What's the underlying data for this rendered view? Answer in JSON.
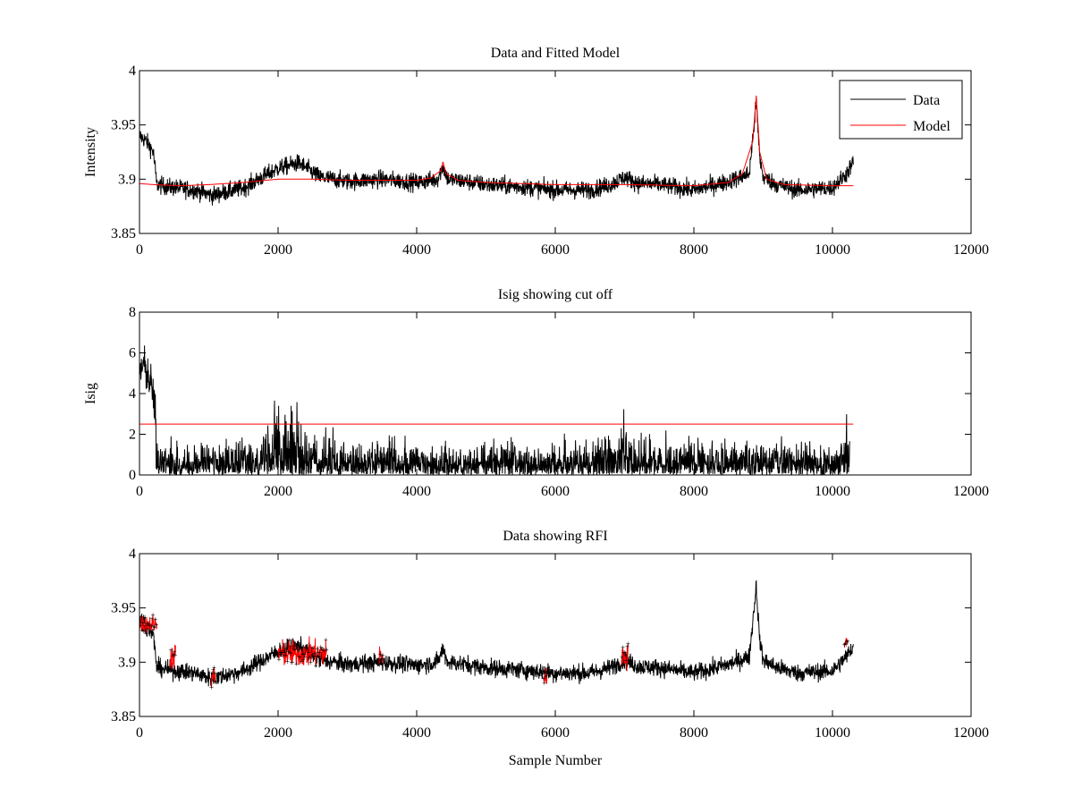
{
  "figure": {
    "colors": {
      "data": "#000000",
      "model": "#ff0000",
      "cutoff": "#ff0000",
      "rfi": "#ff0000"
    }
  },
  "chart_data": [
    {
      "type": "line",
      "title": "Data and Fitted Model",
      "xlabel": "",
      "ylabel": "Intensity",
      "xlim": [
        0,
        12000
      ],
      "ylim": [
        3.85,
        4
      ],
      "xticks": [
        "0",
        "2000",
        "4000",
        "6000",
        "8000",
        "10000",
        "12000"
      ],
      "yticks": [
        "3.85",
        "3.9",
        "3.95",
        "4"
      ],
      "grid": false,
      "legend": {
        "placement": "top-right",
        "entries": [
          "Data",
          "Model"
        ]
      },
      "series": [
        {
          "name": "Data",
          "color": "#000000",
          "noise": 0.008,
          "x": [
            0,
            100,
            200,
            250,
            400,
            800,
            1050,
            1500,
            2000,
            2300,
            2600,
            3000,
            3500,
            4000,
            4300,
            4380,
            4450,
            4700,
            5000,
            5500,
            6000,
            6500,
            6800,
            7000,
            7200,
            7500,
            8000,
            8500,
            8800,
            8900,
            8950,
            9000,
            9200,
            9500,
            10000,
            10200,
            10300
          ],
          "y": [
            3.94,
            3.935,
            3.925,
            3.895,
            3.893,
            3.89,
            3.885,
            3.892,
            3.91,
            3.915,
            3.902,
            3.898,
            3.9,
            3.897,
            3.9,
            3.912,
            3.9,
            3.898,
            3.895,
            3.893,
            3.89,
            3.89,
            3.895,
            3.902,
            3.896,
            3.895,
            3.89,
            3.898,
            3.905,
            3.97,
            3.92,
            3.902,
            3.895,
            3.89,
            3.892,
            3.905,
            3.915
          ]
        },
        {
          "name": "Model",
          "color": "#ff0000",
          "noise": 0,
          "x": [
            0,
            200,
            600,
            1000,
            1500,
            2000,
            2500,
            3000,
            3500,
            4000,
            4200,
            4350,
            4380,
            4420,
            4600,
            5000,
            6000,
            7000,
            8000,
            8500,
            8700,
            8850,
            8900,
            8950,
            9050,
            9300,
            10000,
            10300
          ],
          "y": [
            3.896,
            3.895,
            3.894,
            3.895,
            3.897,
            3.9,
            3.9,
            3.899,
            3.899,
            3.899,
            3.901,
            3.908,
            3.916,
            3.905,
            3.899,
            3.897,
            3.895,
            3.895,
            3.894,
            3.897,
            3.905,
            3.935,
            3.977,
            3.925,
            3.9,
            3.895,
            3.894,
            3.894
          ]
        }
      ]
    },
    {
      "type": "line",
      "title": "Isig showing cut off",
      "xlabel": "",
      "ylabel": "Isig",
      "xlim": [
        0,
        12000
      ],
      "ylim": [
        0,
        8
      ],
      "xticks": [
        "0",
        "2000",
        "4000",
        "6000",
        "8000",
        "10000",
        "12000"
      ],
      "yticks": [
        "0",
        "2",
        "4",
        "6",
        "8"
      ],
      "grid": false,
      "cutoff": 2.5,
      "series": [
        {
          "name": "",
          "color": "#000000",
          "x": [
            0,
            50,
            100,
            150,
            200,
            230,
            260,
            1000,
            1900,
            2000,
            2250,
            2400,
            3000,
            4000,
            5000,
            6000,
            6900,
            7000,
            7100,
            8000,
            9000,
            10000,
            10150,
            10200,
            10250
          ],
          "y": [
            5.0,
            5.4,
            5.1,
            4.6,
            4.0,
            2.8,
            0.8,
            0.8,
            1.1,
            1.6,
            1.7,
            1.0,
            0.8,
            0.8,
            0.8,
            0.8,
            0.9,
            1.6,
            1.0,
            0.8,
            0.8,
            0.8,
            1.0,
            1.6,
            2.0
          ]
        }
      ]
    },
    {
      "type": "line",
      "title": "Data showing RFI",
      "xlabel": "Sample Number",
      "ylabel": "",
      "xlim": [
        0,
        12000
      ],
      "ylim": [
        3.85,
        4
      ],
      "xticks": [
        "0",
        "2000",
        "4000",
        "6000",
        "8000",
        "10000",
        "12000"
      ],
      "yticks": [
        "3.85",
        "3.9",
        "3.95",
        "4"
      ],
      "grid": false,
      "series": [
        {
          "name": "",
          "color": "#000000",
          "noise": 0.008,
          "x": [
            0,
            100,
            200,
            250,
            400,
            800,
            1050,
            1500,
            2000,
            2300,
            2600,
            3000,
            3500,
            4000,
            4300,
            4380,
            4450,
            4700,
            5000,
            5500,
            6000,
            6500,
            6800,
            7000,
            7200,
            7500,
            8000,
            8500,
            8800,
            8900,
            8950,
            9000,
            9200,
            9500,
            10000,
            10200,
            10300
          ],
          "y": [
            3.94,
            3.935,
            3.925,
            3.895,
            3.893,
            3.89,
            3.885,
            3.892,
            3.91,
            3.915,
            3.902,
            3.898,
            3.9,
            3.897,
            3.9,
            3.912,
            3.9,
            3.898,
            3.895,
            3.893,
            3.89,
            3.89,
            3.895,
            3.902,
            3.896,
            3.895,
            3.89,
            3.898,
            3.905,
            3.97,
            3.92,
            3.902,
            3.895,
            3.89,
            3.892,
            3.905,
            3.915
          ]
        }
      ],
      "rfi_regions": [
        {
          "x": [
            0,
            250
          ],
          "y_center": 3.935,
          "spread": 0.007
        },
        {
          "x": [
            440,
            520
          ],
          "y_center": 3.905,
          "spread": 0.01
        },
        {
          "x": [
            1040,
            1090
          ],
          "y_center": 3.886,
          "spread": 0.009
        },
        {
          "x": [
            2000,
            2700
          ],
          "y_center": 3.908,
          "spread": 0.01
        },
        {
          "x": [
            3460,
            3510
          ],
          "y_center": 3.905,
          "spread": 0.01
        },
        {
          "x": [
            5830,
            5880
          ],
          "y_center": 3.885,
          "spread": 0.008
        },
        {
          "x": [
            6950,
            7050
          ],
          "y_center": 3.905,
          "spread": 0.01
        },
        {
          "x": [
            10170,
            10220
          ],
          "y_center": 3.918,
          "spread": 0.004
        }
      ]
    }
  ]
}
